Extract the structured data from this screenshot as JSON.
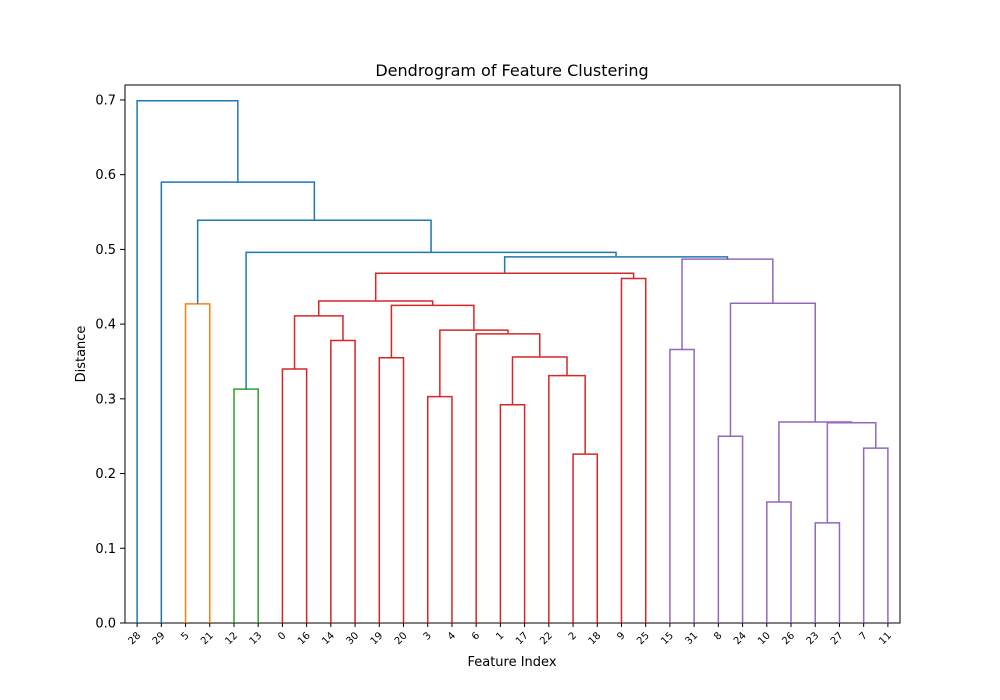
{
  "chart_data": {
    "type": "dendrogram",
    "title": "Dendrogram of Feature Clustering",
    "xlabel": "Feature Index",
    "ylabel": "Distance",
    "ylim": [
      0,
      0.72
    ],
    "yticks": [
      "0.0",
      "0.1",
      "0.2",
      "0.3",
      "0.4",
      "0.5",
      "0.6",
      "0.7"
    ],
    "leaf_order": [
      "28",
      "29",
      "5",
      "21",
      "12",
      "13",
      "0",
      "16",
      "14",
      "30",
      "19",
      "20",
      "3",
      "4",
      "6",
      "1",
      "17",
      "22",
      "2",
      "18",
      "9",
      "25",
      "15",
      "31",
      "8",
      "24",
      "10",
      "26",
      "23",
      "27",
      "7",
      "11"
    ],
    "colors": {
      "blue": "#1f77b4",
      "orange": "#ff7f0e",
      "green": "#2ca02c",
      "red": "#d62728",
      "purple": "#9467bd"
    },
    "merges": [
      {
        "left": "5",
        "right": "21",
        "distance": 0.427,
        "color": "orange"
      },
      {
        "left": "12",
        "right": "13",
        "distance": 0.313,
        "color": "green"
      },
      {
        "left": "0",
        "right": "16",
        "distance": 0.34,
        "color": "red"
      },
      {
        "left": "14",
        "right": "30",
        "distance": 0.378,
        "color": "red"
      },
      {
        "left": "19",
        "right": "20",
        "distance": 0.355,
        "color": "red"
      },
      {
        "left": "3",
        "right": "4",
        "distance": 0.303,
        "color": "red"
      },
      {
        "left": "1",
        "right": "17",
        "distance": 0.292,
        "color": "red"
      },
      {
        "left": "2",
        "right": "18",
        "distance": 0.226,
        "color": "red"
      },
      {
        "left": "22",
        "right": "[2,18]",
        "distance": 0.331,
        "color": "red"
      },
      {
        "left": "[1,17]",
        "right": "[22,2,18]",
        "distance": 0.356,
        "color": "red"
      },
      {
        "left": "6",
        "right": "[1,17,22,2,18]",
        "distance": 0.387,
        "color": "red"
      },
      {
        "left": "[3,4]",
        "right": "[6,...]",
        "distance": 0.392,
        "color": "red"
      },
      {
        "left": "[19,20]",
        "right": "[3,4,6,...]",
        "distance": 0.425,
        "color": "red"
      },
      {
        "left": "[0,16]",
        "right": "[14,30]",
        "distance": 0.411,
        "color": "red"
      },
      {
        "left": "[0,16,14,30]",
        "right": "[19,...,18]",
        "distance": 0.431,
        "color": "red"
      },
      {
        "left": "9",
        "right": "25",
        "distance": 0.461,
        "color": "red"
      },
      {
        "left": "[0,...,18]",
        "right": "[9,25]",
        "distance": 0.468,
        "color": "red"
      },
      {
        "left": "15",
        "right": "31",
        "distance": 0.366,
        "color": "purple"
      },
      {
        "left": "8",
        "right": "24",
        "distance": 0.25,
        "color": "purple"
      },
      {
        "left": "10",
        "right": "26",
        "distance": 0.162,
        "color": "purple"
      },
      {
        "left": "23",
        "right": "27",
        "distance": 0.134,
        "color": "purple"
      },
      {
        "left": "7",
        "right": "11",
        "distance": 0.234,
        "color": "purple"
      },
      {
        "left": "[23,27]",
        "right": "[7,11]",
        "distance": 0.268,
        "color": "purple"
      },
      {
        "left": "[10,26]",
        "right": "[23,27,7,11]",
        "distance": 0.269,
        "color": "purple"
      },
      {
        "left": "[8,24]",
        "right": "[10,...,11]",
        "distance": 0.428,
        "color": "purple"
      },
      {
        "left": "[15,31]",
        "right": "[8,...,11]",
        "distance": 0.487,
        "color": "purple"
      },
      {
        "left": "red-cluster",
        "right": "purple-cluster",
        "distance": 0.49,
        "color": "blue"
      },
      {
        "left": "[12,13]",
        "right": "[red+purple]",
        "distance": 0.496,
        "color": "blue"
      },
      {
        "left": "[5,21]",
        "right": "[12,13,...]",
        "distance": 0.539,
        "color": "blue"
      },
      {
        "left": "29",
        "right": "[5,21,...]",
        "distance": 0.59,
        "color": "blue"
      },
      {
        "left": "28",
        "right": "[29,...]",
        "distance": 0.699,
        "color": "blue"
      }
    ]
  }
}
